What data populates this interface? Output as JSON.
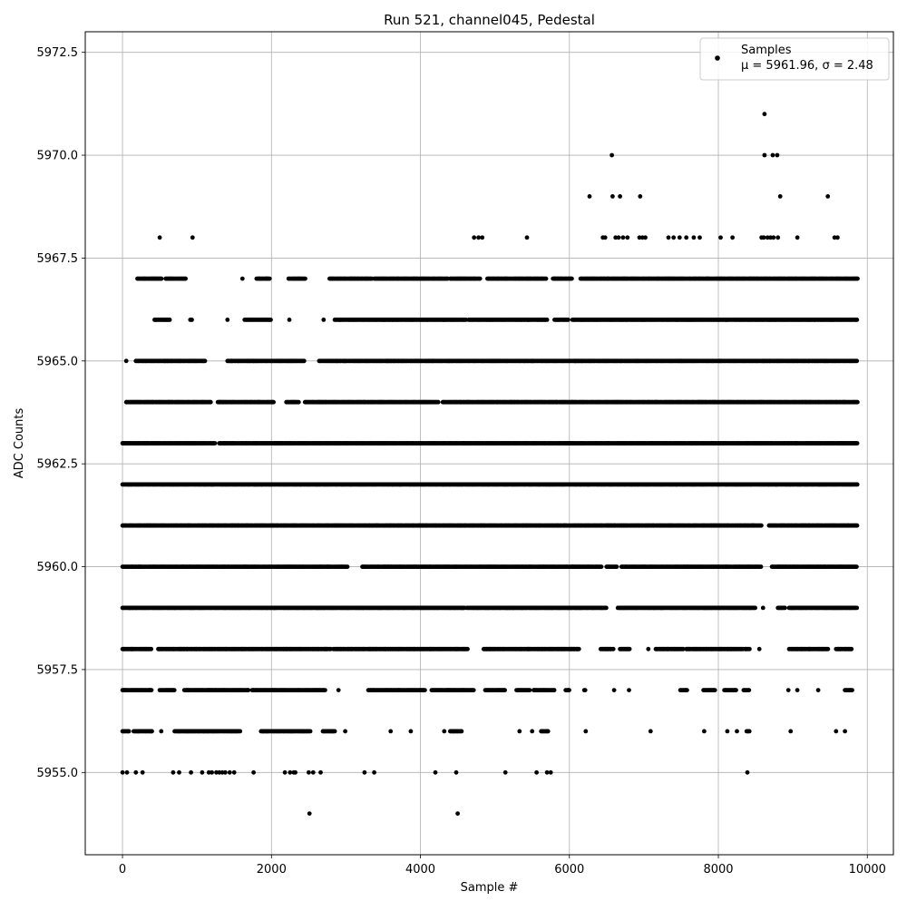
{
  "chart_data": {
    "type": "scatter",
    "title": "Run 521, channel045, Pedestal",
    "xlabel": "Sample #",
    "ylabel": "ADC Counts",
    "xlim": [
      -500,
      10350
    ],
    "ylim": [
      5953.0,
      5973.0
    ],
    "xticks": [
      0,
      2000,
      4000,
      6000,
      8000,
      10000
    ],
    "xtick_labels": [
      "0",
      "2000",
      "4000",
      "6000",
      "8000",
      "10000"
    ],
    "yticks": [
      5955.0,
      5957.5,
      5960.0,
      5962.5,
      5965.0,
      5967.5,
      5970.0,
      5972.5
    ],
    "ytick_labels": [
      "5955.0",
      "5957.5",
      "5960.0",
      "5962.5",
      "5965.0",
      "5967.5",
      "5970.0",
      "5972.5"
    ],
    "grid": true,
    "legend": {
      "placement": "top-right",
      "label": "Samples",
      "stats": "μ = 5961.96, σ = 2.48"
    },
    "marker_color": "#000000",
    "n_samples": 9840,
    "mean": 5961.96,
    "sigma": 2.48,
    "series": [
      {
        "name": "Samples",
        "levels": [
          {
            "y": 5954,
            "x": [
              2510,
              4500
            ]
          },
          {
            "y": 5955,
            "x": [
              0,
              60,
              180,
              270,
              680,
              760,
              920,
              1070,
              1160,
              1200,
              1260,
              1300,
              1340,
              1380,
              1440,
              1500,
              1760,
              2180,
              2250,
              2300,
              2320,
              2500,
              2560,
              2660,
              3250,
              3380,
              4200,
              4480,
              5140,
              5560,
              5700,
              5750,
              8390
            ]
          },
          {
            "y": 5956,
            "x": [
              [
                0,
                100
              ],
              [
                150,
                400
              ],
              [
                520,
                520
              ],
              [
                700,
                1580
              ],
              [
                1860,
                2530
              ],
              [
                2690,
                2850
              ],
              [
                2990,
                2990
              ],
              [
                3600,
                3600
              ],
              [
                3870,
                3870
              ],
              [
                4320,
                4320
              ],
              [
                4400,
                4560
              ],
              [
                5330,
                5330
              ],
              [
                5500,
                5500
              ],
              [
                5620,
                5720
              ],
              [
                6220,
                6220
              ],
              [
                7090,
                7090
              ],
              [
                7810,
                7810
              ],
              [
                8120,
                8120
              ],
              [
                8250,
                8250
              ],
              [
                8380,
                8420
              ],
              [
                8970,
                8970
              ],
              [
                9580,
                9580
              ],
              [
                9700,
                9700
              ]
            ]
          },
          {
            "y": 5957,
            "x": [
              [
                0,
                400
              ],
              [
                500,
                700
              ],
              [
                830,
                1700
              ],
              [
                1740,
                2580
              ],
              [
                2580,
                2720
              ],
              [
                2900,
                2900
              ],
              [
                3300,
                4070
              ],
              [
                4150,
                4720
              ],
              [
                4870,
                5140
              ],
              [
                5290,
                5470
              ],
              [
                5520,
                5800
              ],
              [
                5950,
                6000
              ],
              [
                6200,
                6220
              ],
              [
                6600,
                6600
              ],
              [
                6800,
                6800
              ],
              [
                7490,
                7580
              ],
              [
                7800,
                7960
              ],
              [
                8080,
                8250
              ],
              [
                8340,
                8420
              ],
              [
                8940,
                8940
              ],
              [
                9060,
                9060
              ],
              [
                9340,
                9340
              ],
              [
                9700,
                9800
              ]
            ]
          },
          {
            "y": 5958,
            "x": [
              [
                0,
                400
              ],
              [
                480,
                2810
              ],
              [
                2830,
                3080
              ],
              [
                3080,
                3600
              ],
              [
                3600,
                4490
              ],
              [
                4490,
                4640
              ],
              [
                4850,
                5900
              ],
              [
                5900,
                6140
              ],
              [
                6420,
                6600
              ],
              [
                6680,
                6820
              ],
              [
                7060,
                7060
              ],
              [
                7160,
                7530
              ],
              [
                7570,
                8340
              ],
              [
                8360,
                8430
              ],
              [
                8550,
                8550
              ],
              [
                8950,
                9480
              ],
              [
                9580,
                9800
              ]
            ]
          },
          {
            "y": 5959,
            "x": [
              [
                0,
                4600
              ],
              [
                4620,
                6150
              ],
              [
                6150,
                6500
              ],
              [
                6650,
                6900
              ],
              [
                6900,
                8470
              ],
              [
                8470,
                8500
              ],
              [
                8600,
                8600
              ],
              [
                8800,
                8900
              ],
              [
                8950,
                9870
              ]
            ]
          },
          {
            "y": 5960,
            "x": [
              [
                0,
                3020
              ],
              [
                3220,
                6430
              ],
              [
                6500,
                6640
              ],
              [
                6700,
                8580
              ],
              [
                8720,
                9870
              ]
            ]
          },
          {
            "y": 5961,
            "x": [
              [
                0,
                8580
              ],
              [
                8680,
                9870
              ]
            ]
          },
          {
            "y": 5962,
            "x": [
              [
                0,
                9870
              ]
            ]
          },
          {
            "y": 5963,
            "x": [
              [
                0,
                1250
              ],
              [
                1300,
                9870
              ]
            ]
          },
          {
            "y": 5964,
            "x": [
              [
                50,
                1190
              ],
              [
                1280,
                2030
              ],
              [
                2200,
                2370
              ],
              [
                2450,
                4240
              ],
              [
                4300,
                9870
              ]
            ]
          },
          {
            "y": 5965,
            "x": [
              [
                50,
                50
              ],
              [
                180,
                900
              ],
              [
                900,
                1110
              ],
              [
                1410,
                1760
              ],
              [
                1760,
                2080
              ],
              [
                2080,
                2440
              ],
              [
                2640,
                4100
              ],
              [
                4100,
                9870
              ]
            ]
          },
          {
            "y": 5966,
            "x": [
              [
                430,
                640
              ],
              [
                910,
                940
              ],
              [
                1410,
                1410
              ],
              [
                1640,
                1990
              ],
              [
                2240,
                2240
              ],
              [
                2700,
                2700
              ],
              [
                2850,
                3630
              ],
              [
                3630,
                4620
              ],
              [
                4650,
                5700
              ],
              [
                5800,
                5990
              ],
              [
                6040,
                9870
              ]
            ]
          },
          {
            "y": 5967,
            "x": [
              [
                200,
                530
              ],
              [
                580,
                850
              ],
              [
                1610,
                1610
              ],
              [
                1800,
                1980
              ],
              [
                2230,
                2460
              ],
              [
                2780,
                3350
              ],
              [
                3380,
                4370
              ],
              [
                4400,
                4800
              ],
              [
                4900,
                5690
              ],
              [
                5780,
                6040
              ],
              [
                6150,
                9870
              ]
            ]
          },
          {
            "y": 5968,
            "x": [
              500,
              940,
              4720,
              4780,
              4830,
              5430,
              6450,
              6480,
              6620,
              6660,
              6720,
              6780,
              6940,
              6980,
              7020,
              7330,
              7400,
              7480,
              7570,
              7670,
              7750,
              8030,
              8190,
              8580,
              8610,
              8660,
              8700,
              8740,
              8800,
              9060,
              9560,
              9600
            ]
          },
          {
            "y": 5969,
            "x": [
              6270,
              6580,
              6680,
              6950,
              8830,
              9470
            ]
          },
          {
            "y": 5970,
            "x": [
              6570,
              8620,
              8730,
              8790
            ]
          },
          {
            "y": 5971,
            "x": [
              8620
            ]
          }
        ]
      }
    ]
  }
}
